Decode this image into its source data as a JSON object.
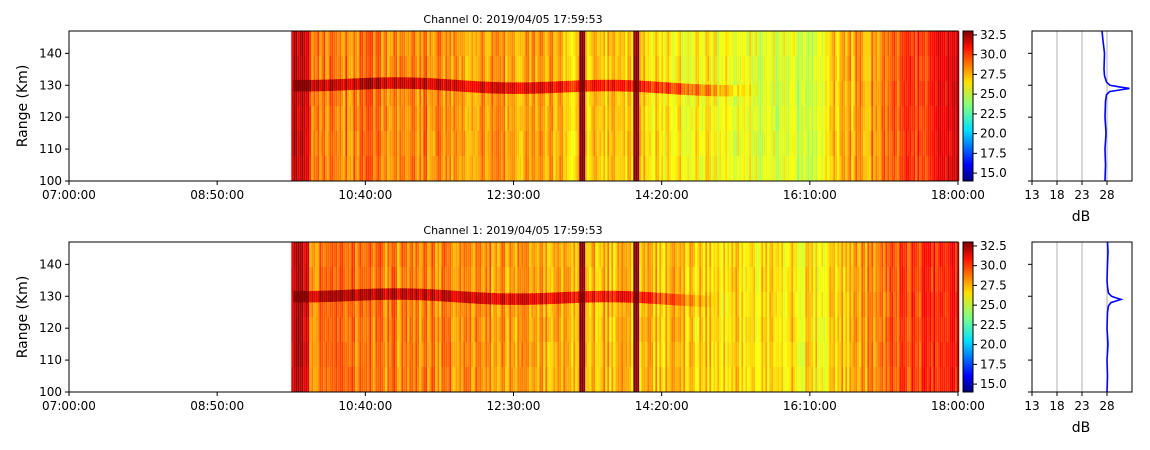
{
  "colorbar_ticks": [
    "15.0",
    "17.5",
    "20.0",
    "22.5",
    "25.0",
    "27.5",
    "30.0",
    "32.5"
  ],
  "chart_data": [
    {
      "type": "heatmap",
      "title": "Channel 0: 2019/04/05 17:59:53",
      "ylabel": "Range (Km)",
      "xlabel": "",
      "x_range": [
        "07:00:00",
        "18:00:00"
      ],
      "x_ticks": [
        "07:00:00",
        "08:50:00",
        "10:40:00",
        "12:30:00",
        "14:20:00",
        "16:10:00",
        "18:00:00"
      ],
      "y_range": [
        100,
        147
      ],
      "y_ticks": [
        "100",
        "110",
        "120",
        "130",
        "140"
      ],
      "color_range": [
        14,
        33
      ],
      "colorscale": "jet",
      "data_start": "09:45:00",
      "echo_layer": {
        "range_km": 130.5,
        "from": "09:45:00",
        "to": "15:30:00"
      },
      "strong_columns": [
        "13:20:00",
        "13:22:00",
        "14:00:00",
        "14:02:00"
      ],
      "profile": {
        "xlabel": "dB",
        "x_ticks": [
          "13",
          "18",
          "23",
          "28"
        ],
        "x_range": [
          13,
          33
        ],
        "range_km": [
          100,
          105,
          110,
          115,
          120,
          125,
          127,
          128,
          128.5,
          129,
          129.5,
          130,
          131,
          133,
          135,
          140,
          144,
          147
        ],
        "power_db": [
          27.6,
          27.7,
          27.6,
          27.8,
          27.6,
          27.7,
          27.9,
          28.5,
          30.5,
          32.5,
          30.5,
          28.6,
          27.9,
          27.5,
          27.4,
          27.5,
          27.2,
          27.0
        ]
      }
    },
    {
      "type": "heatmap",
      "title": "Channel 1: 2019/04/05 17:59:53",
      "ylabel": "Range (Km)",
      "xlabel": "",
      "x_range": [
        "07:00:00",
        "18:00:00"
      ],
      "x_ticks": [
        "07:00:00",
        "08:50:00",
        "10:40:00",
        "12:30:00",
        "14:20:00",
        "16:10:00",
        "18:00:00"
      ],
      "y_range": [
        100,
        147
      ],
      "y_ticks": [
        "100",
        "110",
        "120",
        "130",
        "140"
      ],
      "color_range": [
        14,
        33
      ],
      "colorscale": "jet",
      "data_start": "09:45:00",
      "echo_layer": {
        "range_km": 130.5,
        "from": "09:45:00",
        "to": "15:00:00"
      },
      "strong_columns": [
        "13:20:00",
        "13:22:00",
        "14:00:00",
        "14:02:00"
      ],
      "profile": {
        "xlabel": "dB",
        "x_ticks": [
          "13",
          "18",
          "23",
          "28"
        ],
        "x_range": [
          13,
          33
        ],
        "range_km": [
          100,
          105,
          110,
          115,
          120,
          125,
          127,
          128,
          128.5,
          129,
          129.5,
          130,
          131,
          133,
          135,
          140,
          144,
          147
        ],
        "power_db": [
          28.0,
          28.1,
          28.0,
          28.2,
          28.0,
          28.1,
          28.3,
          28.8,
          29.8,
          30.8,
          29.8,
          28.9,
          28.3,
          28.1,
          28.0,
          28.1,
          28.2,
          28.1
        ]
      }
    }
  ]
}
